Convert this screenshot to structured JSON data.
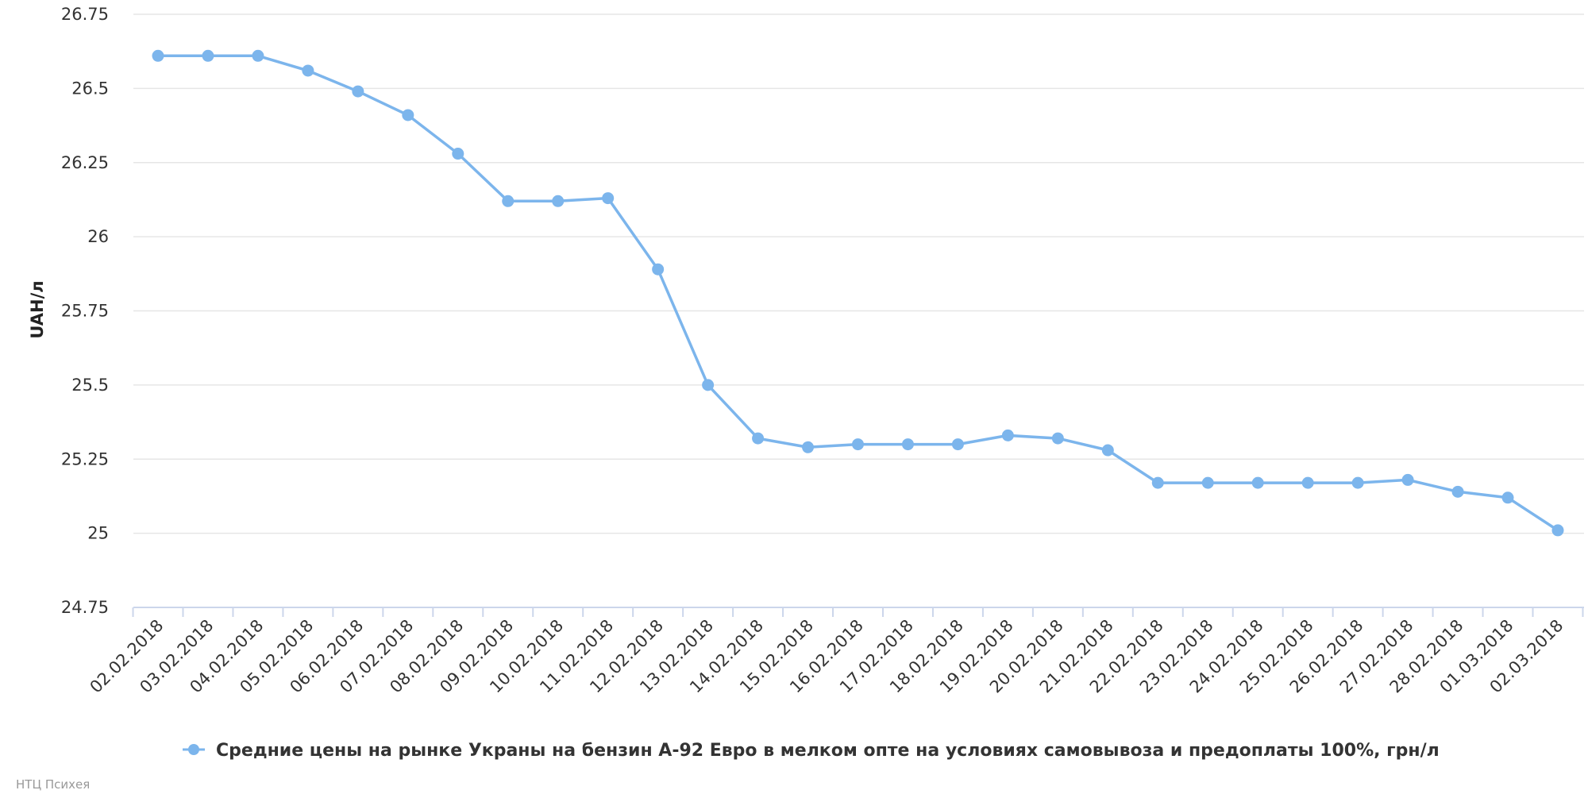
{
  "chart_data": {
    "type": "line",
    "title": "",
    "xlabel": "",
    "ylabel": "UAH/л",
    "ylim": [
      24.75,
      26.75
    ],
    "yticks": [
      24.75,
      25,
      25.25,
      25.5,
      25.75,
      26,
      26.25,
      26.5,
      26.75
    ],
    "ytick_labels": [
      "24.75",
      "25",
      "25.25",
      "25.5",
      "25.75",
      "26",
      "26.25",
      "26.5",
      "26.75"
    ],
    "grid": true,
    "legend_position": "bottom-center",
    "categories": [
      "02.02.2018",
      "03.02.2018",
      "04.02.2018",
      "05.02.2018",
      "06.02.2018",
      "07.02.2018",
      "08.02.2018",
      "09.02.2018",
      "10.02.2018",
      "11.02.2018",
      "12.02.2018",
      "13.02.2018",
      "14.02.2018",
      "15.02.2018",
      "16.02.2018",
      "17.02.2018",
      "18.02.2018",
      "19.02.2018",
      "20.02.2018",
      "21.02.2018",
      "22.02.2018",
      "23.02.2018",
      "24.02.2018",
      "25.02.2018",
      "26.02.2018",
      "27.02.2018",
      "28.02.2018",
      "01.03.2018",
      "02.03.2018"
    ],
    "series": [
      {
        "name": "Средние цены на рынке Украны на бензин А-92 Евро в мелком опте на условиях самовывоза и предоплаты 100%, грн/л",
        "color": "#7cb5ec",
        "values": [
          26.61,
          26.61,
          26.61,
          26.56,
          26.49,
          26.41,
          26.28,
          26.12,
          26.12,
          26.13,
          25.89,
          25.5,
          25.32,
          25.29,
          25.3,
          25.3,
          25.3,
          25.33,
          25.32,
          25.28,
          25.17,
          25.17,
          25.17,
          25.17,
          25.17,
          25.18,
          25.14,
          25.12,
          25.01
        ]
      }
    ]
  },
  "credit": "НТЦ Психея"
}
